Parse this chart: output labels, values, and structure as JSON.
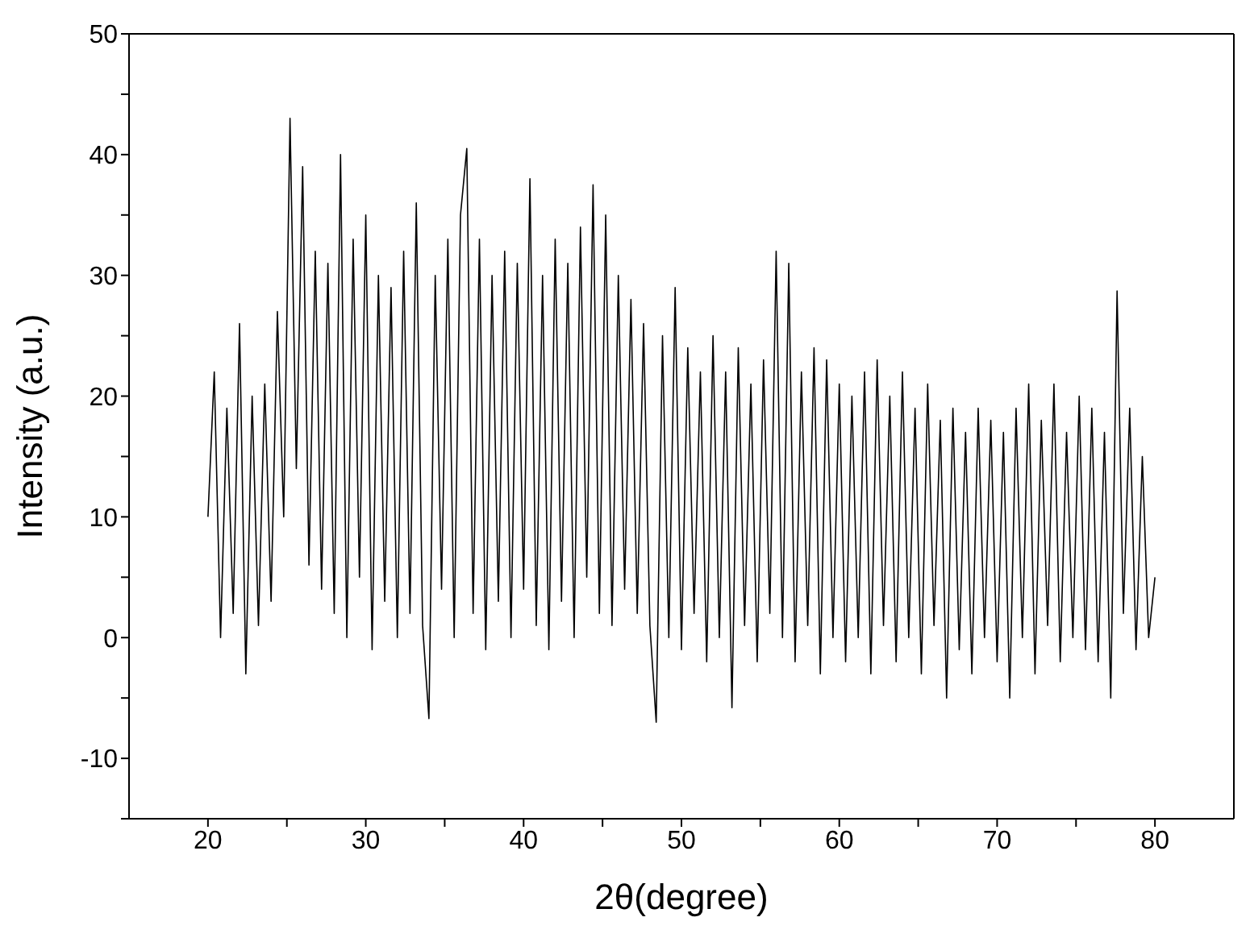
{
  "chart_data": {
    "type": "line",
    "xlabel": "2θ(degree)",
    "ylabel": "Intensity (a.u.)",
    "xlim": [
      15,
      85
    ],
    "xticks": [
      20,
      {
        "value": 25,
        "label": null
      },
      30,
      {
        "value": 35,
        "label": null
      },
      40,
      {
        "value": 45,
        "label": null
      },
      50,
      {
        "value": 55,
        "label": null
      },
      60,
      {
        "value": 65,
        "label": null
      },
      70,
      {
        "value": 75,
        "label": null
      },
      80
    ],
    "ylim": [
      -15,
      50
    ],
    "yticks": [
      {
        "value": -15,
        "label": null
      },
      -10,
      {
        "value": -5,
        "label": null
      },
      0,
      {
        "value": 5,
        "label": null
      },
      10,
      {
        "value": 15,
        "label": null
      },
      20,
      {
        "value": 25,
        "label": null
      },
      30,
      {
        "value": 35,
        "label": null
      },
      40,
      {
        "value": 45,
        "label": null
      },
      50
    ],
    "grid": false,
    "legend": false,
    "marker": "none",
    "line_style": "solid",
    "x": [
      20.0,
      20.4,
      20.8,
      21.2,
      21.6,
      22.0,
      22.4,
      22.8,
      23.2,
      23.6,
      24.0,
      24.4,
      24.8,
      25.2,
      25.6,
      26.0,
      26.4,
      26.8,
      27.2,
      27.6,
      28.0,
      28.4,
      28.8,
      29.2,
      29.6,
      30.0,
      30.4,
      30.8,
      31.2,
      31.6,
      32.0,
      32.4,
      32.8,
      33.2,
      33.6,
      34.0,
      34.4,
      34.8,
      35.2,
      35.6,
      36.0,
      36.4,
      36.8,
      37.2,
      37.6,
      38.0,
      38.4,
      38.8,
      39.2,
      39.6,
      40.0,
      40.4,
      40.8,
      41.2,
      41.6,
      42.0,
      42.4,
      42.8,
      43.2,
      43.6,
      44.0,
      44.4,
      44.8,
      45.2,
      45.6,
      46.0,
      46.4,
      46.8,
      47.2,
      47.6,
      48.0,
      48.4,
      48.8,
      49.2,
      49.6,
      50.0,
      50.4,
      50.8,
      51.2,
      51.6,
      52.0,
      52.4,
      52.8,
      53.2,
      53.6,
      54.0,
      54.4,
      54.8,
      55.2,
      55.6,
      56.0,
      56.4,
      56.8,
      57.2,
      57.6,
      58.0,
      58.4,
      58.8,
      59.2,
      59.6,
      60.0,
      60.4,
      60.8,
      61.2,
      61.6,
      62.0,
      62.4,
      62.8,
      63.2,
      63.6,
      64.0,
      64.4,
      64.8,
      65.2,
      65.6,
      66.0,
      66.4,
      66.8,
      67.2,
      67.6,
      68.0,
      68.4,
      68.8,
      69.2,
      69.6,
      70.0,
      70.4,
      70.8,
      71.2,
      71.6,
      72.0,
      72.4,
      72.8,
      73.2,
      73.6,
      74.0,
      74.4,
      74.8,
      75.2,
      75.6,
      76.0,
      76.4,
      76.8,
      77.2,
      77.6,
      78.0,
      78.4,
      78.8,
      79.2,
      79.6,
      80.0
    ],
    "series": [
      {
        "color": "#000000",
        "values": [
          10,
          22,
          0,
          19,
          2,
          26,
          -3,
          20,
          1,
          21,
          3,
          27,
          10,
          43,
          14,
          39,
          6,
          32,
          4,
          31,
          2,
          40,
          0,
          33,
          5,
          35,
          -1,
          30,
          3,
          29,
          0,
          32,
          2,
          36,
          1,
          -6.7,
          30,
          4,
          33,
          0,
          35,
          40.5,
          2,
          33,
          -1,
          30,
          3,
          32,
          0,
          31,
          4,
          38,
          1,
          30,
          -1,
          33,
          3,
          31,
          0,
          34,
          5,
          37.5,
          2,
          35,
          1,
          30,
          4,
          28,
          2,
          26,
          1,
          -7,
          25,
          0,
          29,
          -1,
          24,
          2,
          22,
          -2,
          25,
          0,
          22,
          -5.8,
          24,
          1,
          21,
          -2,
          23,
          2,
          32,
          0,
          31,
          -2,
          22,
          1,
          24,
          -3,
          23,
          0,
          21,
          -2,
          20,
          0,
          22,
          -3,
          23,
          1,
          20,
          -2,
          22,
          0,
          19,
          -3,
          21,
          1,
          18,
          -5,
          19,
          -1,
          17,
          -3,
          19,
          0,
          18,
          -2,
          17,
          -5,
          19,
          0,
          21,
          -3,
          18,
          1,
          21,
          -2,
          17,
          0,
          20,
          -1,
          19,
          -2,
          17,
          -5,
          28.7,
          2,
          19,
          -1,
          15,
          0,
          5
        ]
      }
    ]
  }
}
